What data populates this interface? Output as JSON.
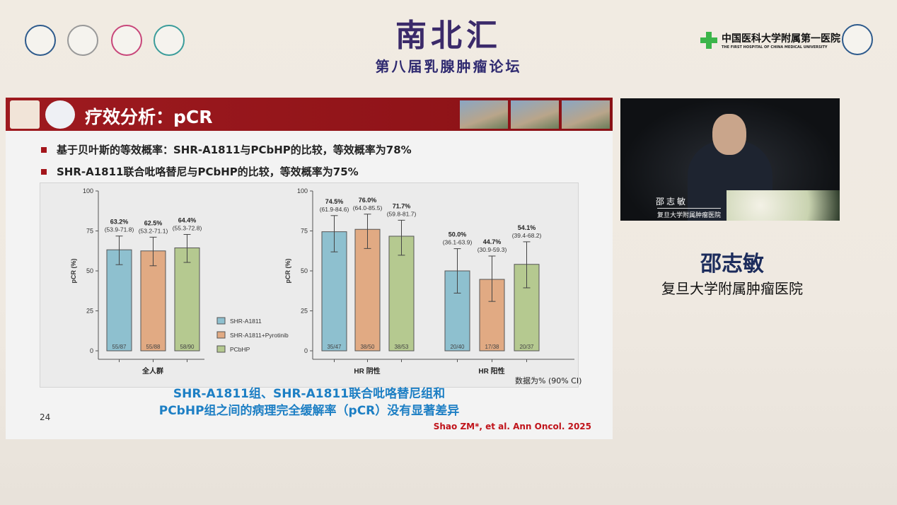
{
  "event": {
    "title": "南北汇",
    "subtitle": "第八届乳腺肿瘤论坛",
    "logos": [
      "university-logo",
      "bcs-logo",
      "society-logo",
      "association-logo"
    ],
    "hospital_cn": "中国医科大学附属第一医院",
    "hospital_en": "THE FIRST HOSPITAL OF CHINA MEDICAL UNIVERSITY"
  },
  "slide": {
    "title": "疗效分析：pCR",
    "bullets": [
      "基于贝叶斯的等效概率：SHR-A1811与PCbHP的比较，等效概率为78%",
      "SHR-A1811联合吡咯替尼与PCbHP的比较，等效概率为75%"
    ],
    "note": "数据为% (90% CI)",
    "conclusion": [
      "SHR-A1811组、SHR-A1811联合吡咯替尼组和",
      "PCbHP组之间的病理完全缓解率（pCR）没有显著差异"
    ],
    "page": "24",
    "citation": "Shao ZM*, et al. Ann Oncol. 2025",
    "accent": "#9e1a1f",
    "conclusion_color": "#1d7fc4"
  },
  "speaker": {
    "video_name": "邵志敏",
    "video_affiliation": "复旦大学附属肿瘤医院",
    "name": "邵志敏",
    "affiliation": "复旦大学附属肿瘤医院"
  },
  "chart_data": [
    {
      "type": "bar",
      "ylabel": "pCR (%)",
      "ylim": [
        0,
        100
      ],
      "yticks": [
        0,
        25,
        50,
        75,
        100
      ],
      "categories": [
        "全人群"
      ],
      "series": [
        {
          "name": "SHR-A1811",
          "color": "#8ec0cf",
          "values": [
            63.2
          ],
          "labels": [
            "63.2%"
          ],
          "ci": [
            "(53.9-71.8)"
          ],
          "ci_low": [
            53.9
          ],
          "ci_high": [
            71.8
          ],
          "n": [
            "55/87"
          ]
        },
        {
          "name": "SHR-A1811+Pyrotinib",
          "color": "#e1aa83",
          "values": [
            62.5
          ],
          "labels": [
            "62.5%"
          ],
          "ci": [
            "(53.2-71.1)"
          ],
          "ci_low": [
            53.2
          ],
          "ci_high": [
            71.1
          ],
          "n": [
            "55/88"
          ]
        },
        {
          "name": "PCbHP",
          "color": "#b5c990",
          "values": [
            64.4
          ],
          "labels": [
            "64.4%"
          ],
          "ci": [
            "(55.3-72.8)"
          ],
          "ci_low": [
            55.3
          ],
          "ci_high": [
            72.8
          ],
          "n": [
            "58/90"
          ]
        }
      ],
      "legend": "right"
    },
    {
      "type": "bar",
      "ylabel": "pCR (%)",
      "ylim": [
        0,
        100
      ],
      "yticks": [
        0,
        25,
        50,
        75,
        100
      ],
      "categories": [
        "HR 阴性",
        "HR 阳性"
      ],
      "series": [
        {
          "name": "SHR-A1811",
          "color": "#8ec0cf",
          "values": [
            74.5,
            50.0
          ],
          "labels": [
            "74.5%",
            "50.0%"
          ],
          "ci": [
            "(61.9-84.6)",
            "(36.1-63.9)"
          ],
          "ci_low": [
            61.9,
            36.1
          ],
          "ci_high": [
            84.6,
            63.9
          ],
          "n": [
            "35/47",
            "20/40"
          ]
        },
        {
          "name": "SHR-A1811+Pyrotinib",
          "color": "#e1aa83",
          "values": [
            76.0,
            44.7
          ],
          "labels": [
            "76.0%",
            "44.7%"
          ],
          "ci": [
            "(64.0-85.5)",
            "(30.9-59.3)"
          ],
          "ci_low": [
            64.0,
            30.9
          ],
          "ci_high": [
            85.5,
            59.3
          ],
          "n": [
            "38/50",
            "17/38"
          ]
        },
        {
          "name": "PCbHP",
          "color": "#b5c990",
          "values": [
            71.7,
            54.1
          ],
          "labels": [
            "71.7%",
            "54.1%"
          ],
          "ci": [
            "(59.8-81.7)",
            "(39.4-68.2)"
          ],
          "ci_low": [
            59.8,
            39.4
          ],
          "ci_high": [
            81.7,
            68.2
          ],
          "n": [
            "38/53",
            "20/37"
          ]
        }
      ]
    }
  ]
}
